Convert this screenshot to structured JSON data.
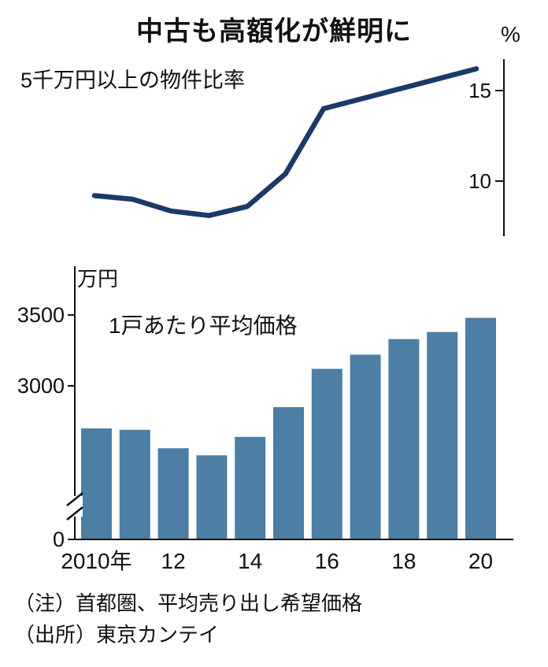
{
  "title": "中古も高額化が鮮明に",
  "notes": [
    "（注）首都圏、平均売り出し希望価格",
    "（出所）東京カンテイ"
  ],
  "chart_data": [
    {
      "type": "line",
      "title": "5千万円以上の物件比率",
      "ylabel": "%",
      "x": [
        2010,
        2011,
        2012,
        2013,
        2014,
        2015,
        2016,
        2017,
        2018,
        2019,
        2020
      ],
      "values": [
        9.2,
        9.0,
        8.35,
        8.1,
        8.6,
        10.4,
        14.0,
        14.55,
        15.1,
        15.65,
        16.2
      ],
      "yticks": [
        15,
        10
      ],
      "ylim": [
        7.5,
        17
      ],
      "axis_side": "right",
      "legend": "none",
      "grid": false,
      "color": "#1b3a68"
    },
    {
      "type": "bar",
      "title": "1戸あたり平均価格",
      "ylabel": "万円",
      "categories": [
        "2010",
        "2011",
        "2012",
        "2013",
        "2014",
        "2015",
        "2016",
        "2017",
        "2018",
        "2019",
        "2020"
      ],
      "values": [
        2700,
        2690,
        2560,
        2510,
        2640,
        2850,
        3120,
        3220,
        3330,
        3380,
        3480
      ],
      "yticks": [
        3500,
        3000,
        0
      ],
      "x_ticks": [
        {
          "index": 0,
          "label": "2010年"
        },
        {
          "index": 2,
          "label": "12"
        },
        {
          "index": 4,
          "label": "14"
        },
        {
          "index": 6,
          "label": "16"
        },
        {
          "index": 8,
          "label": "18"
        },
        {
          "index": 10,
          "label": "20"
        }
      ],
      "axis_break": true,
      "grid": false,
      "legend": "none",
      "color": "#4d7ea3"
    }
  ]
}
